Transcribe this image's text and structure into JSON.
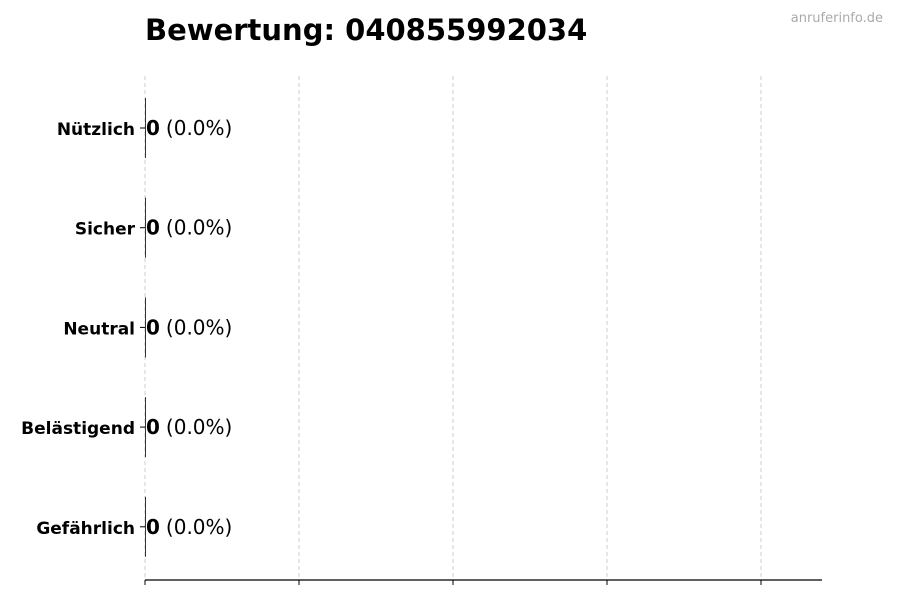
{
  "chart_data": {
    "type": "bar",
    "orientation": "horizontal",
    "title": "Bewertung: 040855992034",
    "watermark": "anruferinfo.de",
    "categories": [
      "Nützlich",
      "Sicher",
      "Neutral",
      "Belästigend",
      "Gefährlich"
    ],
    "values": [
      0,
      0,
      0,
      0,
      0
    ],
    "labels": [
      {
        "count": "0",
        "percent": "(0.0%)"
      },
      {
        "count": "0",
        "percent": "(0.0%)"
      },
      {
        "count": "0",
        "percent": "(0.0%)"
      },
      {
        "count": "0",
        "percent": "(0.0%)"
      },
      {
        "count": "0",
        "percent": "(0.0%)"
      }
    ],
    "xlabel": "",
    "ylabel": "",
    "grid": "vertical dashed",
    "colors": {
      "bar_edge": "#000000",
      "grid": "#cccccc",
      "watermark": "#aaaaaa"
    }
  }
}
